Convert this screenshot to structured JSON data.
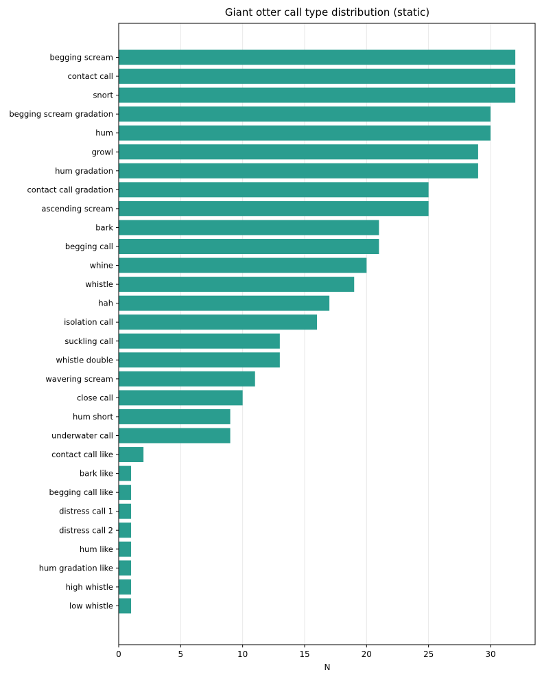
{
  "chart_data": {
    "type": "bar",
    "orientation": "horizontal",
    "title": "Giant otter call type distribution (static)",
    "xlabel": "N",
    "ylabel": "",
    "xlim": [
      0,
      33.6
    ],
    "xticks": [
      0,
      5,
      10,
      15,
      20,
      25,
      30
    ],
    "grid": "vertical",
    "bar_color": "#2a9d8f",
    "categories": [
      "begging scream",
      "contact call",
      "snort",
      "begging scream gradation",
      "hum",
      "growl",
      "hum gradation",
      "contact call gradation",
      "ascending scream",
      "bark",
      "begging call",
      "whine",
      "whistle",
      "hah",
      "isolation call",
      "suckling call",
      "whistle double",
      "wavering scream",
      "close call",
      "hum short",
      "underwater call",
      "contact call like",
      "bark like",
      "begging call like",
      "distress call 1",
      "distress call 2",
      "hum like",
      "hum gradation like",
      "high whistle",
      "low whistle"
    ],
    "values": [
      32,
      32,
      32,
      30,
      30,
      29,
      29,
      25,
      25,
      21,
      21,
      20,
      19,
      17,
      16,
      13,
      13,
      11,
      10,
      9,
      9,
      2,
      1,
      1,
      1,
      1,
      1,
      1,
      1,
      1
    ]
  }
}
